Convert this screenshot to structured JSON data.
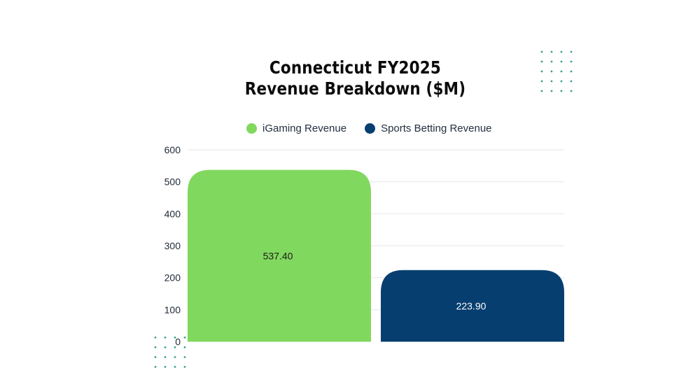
{
  "colors": {
    "igaming": "#81d85e",
    "sports": "#073e70",
    "grid": "#e3e6ea",
    "axis_text": "#1f2a37",
    "dot_accent": "#3a9e8f"
  },
  "chart_data": {
    "type": "bar",
    "title_lines": [
      "Connecticut FY2025",
      "Revenue Breakdown ($M)"
    ],
    "series": [
      {
        "name": "iGaming Revenue",
        "value": 537.4,
        "label": "537.40"
      },
      {
        "name": "Sports Betting Revenue",
        "value": 223.9,
        "label": "223.90"
      }
    ],
    "ylim": [
      0,
      600
    ],
    "yticks": [
      "0",
      "100",
      "200",
      "300",
      "400",
      "500",
      "600"
    ],
    "grid": true,
    "legend_position": "top"
  }
}
